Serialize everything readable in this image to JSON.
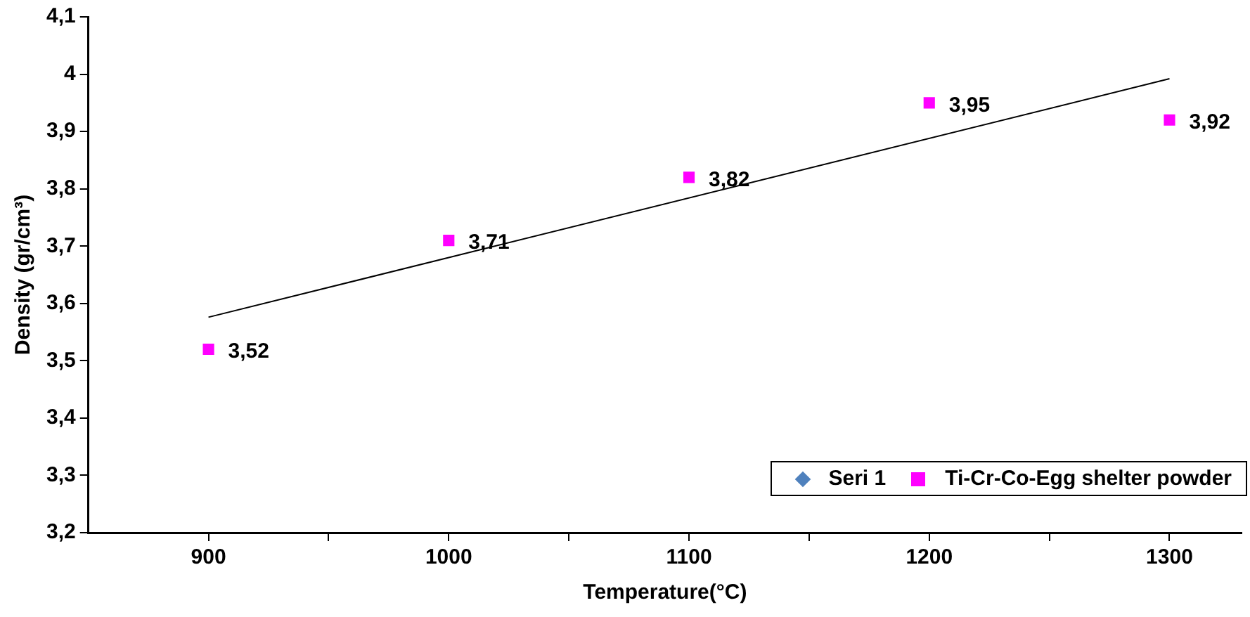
{
  "chart_data": {
    "type": "scatter",
    "xlabel": "Temperature(°C)",
    "ylabel": "Density (gr/cm³)",
    "x": [
      900,
      1000,
      1100,
      1200,
      1300
    ],
    "series": [
      {
        "name": "Seri 1",
        "color": "#4f81bd",
        "marker": "diamond",
        "values": [
          null,
          null,
          null,
          null,
          null
        ]
      },
      {
        "name": "Ti-Cr-Co-Egg shelter powder",
        "color": "#ff00ff",
        "marker": "square",
        "values": [
          3.52,
          3.71,
          3.82,
          3.95,
          3.92
        ],
        "value_labels": [
          "3,52",
          "3,71",
          "3,82",
          "3,95",
          "3,92"
        ]
      },
      {
        "type": "line",
        "color": "#000000",
        "marker": "none",
        "x": [
          900,
          1300
        ],
        "values": [
          3.576,
          3.992
        ]
      }
    ],
    "xlim": [
      850,
      1330
    ],
    "xticks": [
      900,
      {
        "value": 950,
        "label": null
      },
      1000,
      {
        "value": 1050,
        "label": null
      },
      1100,
      {
        "value": 1150,
        "label": null
      },
      1200,
      {
        "value": 1250,
        "label": null
      },
      1300
    ],
    "ylim": [
      3.2,
      4.1
    ],
    "yticks": [
      {
        "value": 3.2,
        "label": "3,2"
      },
      {
        "value": 3.3,
        "label": "3,3"
      },
      {
        "value": 3.4,
        "label": "3,4"
      },
      {
        "value": 3.5,
        "label": "3,5"
      },
      {
        "value": 3.6,
        "label": "3,6"
      },
      {
        "value": 3.7,
        "label": "3,7"
      },
      {
        "value": 3.8,
        "label": "3,8"
      },
      {
        "value": 3.9,
        "label": "3,9"
      },
      {
        "value": 4,
        "label": "4"
      },
      {
        "value": 4.1,
        "label": "4,1"
      }
    ],
    "grid": false,
    "legend": "bottom right"
  }
}
